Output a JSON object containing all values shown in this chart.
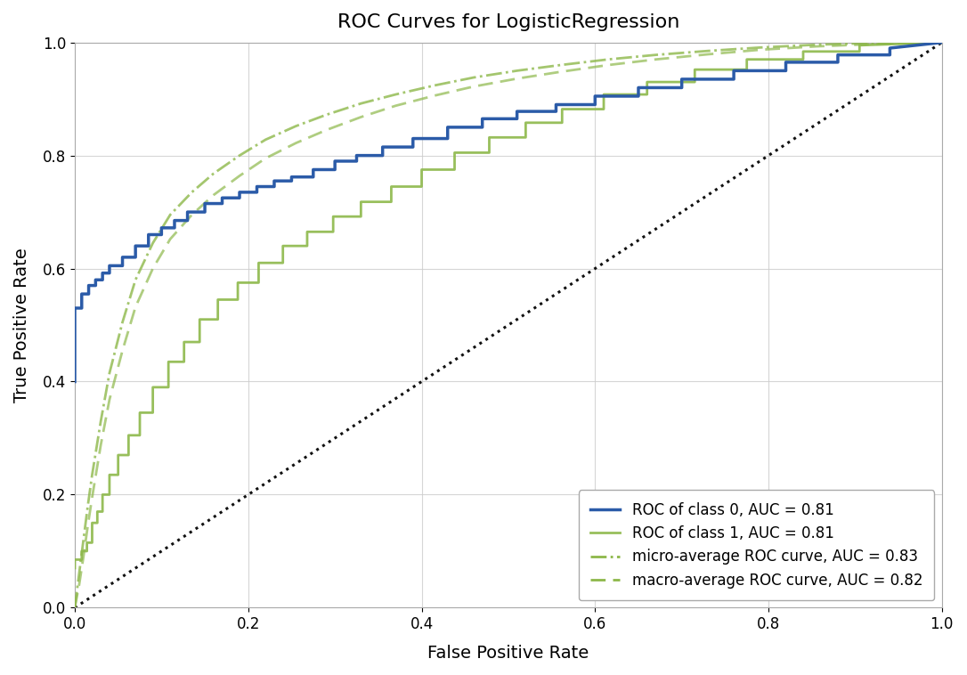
{
  "title": "ROC Curves for LogisticRegression",
  "xlabel": "False Positive Rate",
  "ylabel": "True Positive Rate",
  "xlim": [
    0.0,
    1.0
  ],
  "ylim": [
    0.0,
    1.0
  ],
  "background_color": "#ffffff",
  "grid_color": "#cccccc",
  "title_fontsize": 16,
  "label_fontsize": 14,
  "tick_fontsize": 12,
  "legend_fontsize": 12,
  "color_class0": "#2b5ba8",
  "color_class1": "#8db84a",
  "color_micro": "#8db84a",
  "color_macro": "#8db84a",
  "color_diagonal": "#111111",
  "legend_labels": [
    "ROC of class 0, AUC = 0.81",
    "ROC of class 1, AUC = 0.81",
    "micro-average ROC curve, AUC = 0.83",
    "macro-average ROC curve, AUC = 0.82"
  ],
  "fpr_c0": [
    0.0,
    0.0,
    0.008,
    0.008,
    0.016,
    0.016,
    0.024,
    0.024,
    0.032,
    0.032,
    0.04,
    0.04,
    0.055,
    0.055,
    0.07,
    0.07,
    0.085,
    0.085,
    0.1,
    0.1,
    0.115,
    0.115,
    0.13,
    0.13,
    0.15,
    0.15,
    0.17,
    0.17,
    0.19,
    0.19,
    0.21,
    0.21,
    0.23,
    0.23,
    0.25,
    0.25,
    0.275,
    0.275,
    0.3,
    0.3,
    0.325,
    0.325,
    0.355,
    0.355,
    0.39,
    0.39,
    0.43,
    0.43,
    0.47,
    0.47,
    0.51,
    0.51,
    0.555,
    0.555,
    0.6,
    0.6,
    0.65,
    0.65,
    0.7,
    0.7,
    0.76,
    0.76,
    0.82,
    0.82,
    0.88,
    0.88,
    0.94,
    0.94,
    1.0
  ],
  "tpr_c0": [
    0.4,
    0.53,
    0.53,
    0.555,
    0.555,
    0.57,
    0.57,
    0.58,
    0.58,
    0.592,
    0.592,
    0.605,
    0.605,
    0.62,
    0.62,
    0.64,
    0.64,
    0.66,
    0.66,
    0.672,
    0.672,
    0.685,
    0.685,
    0.7,
    0.7,
    0.715,
    0.715,
    0.725,
    0.725,
    0.735,
    0.735,
    0.745,
    0.745,
    0.755,
    0.755,
    0.762,
    0.762,
    0.775,
    0.775,
    0.79,
    0.79,
    0.8,
    0.8,
    0.815,
    0.815,
    0.83,
    0.83,
    0.85,
    0.85,
    0.865,
    0.865,
    0.878,
    0.878,
    0.89,
    0.89,
    0.905,
    0.905,
    0.92,
    0.92,
    0.935,
    0.935,
    0.95,
    0.95,
    0.965,
    0.965,
    0.978,
    0.978,
    0.99,
    1.0
  ],
  "fpr_c1": [
    0.0,
    0.0,
    0.008,
    0.008,
    0.014,
    0.014,
    0.02,
    0.02,
    0.026,
    0.026,
    0.032,
    0.032,
    0.04,
    0.04,
    0.05,
    0.05,
    0.062,
    0.062,
    0.075,
    0.075,
    0.09,
    0.09,
    0.108,
    0.108,
    0.126,
    0.126,
    0.144,
    0.144,
    0.165,
    0.165,
    0.188,
    0.188,
    0.212,
    0.212,
    0.24,
    0.24,
    0.268,
    0.268,
    0.298,
    0.298,
    0.33,
    0.33,
    0.365,
    0.365,
    0.4,
    0.4,
    0.438,
    0.438,
    0.478,
    0.478,
    0.52,
    0.52,
    0.562,
    0.562,
    0.61,
    0.61,
    0.66,
    0.66,
    0.715,
    0.715,
    0.775,
    0.775,
    0.84,
    0.84,
    0.905,
    0.905,
    1.0
  ],
  "tpr_c1": [
    0.07,
    0.085,
    0.085,
    0.1,
    0.1,
    0.115,
    0.115,
    0.15,
    0.15,
    0.17,
    0.17,
    0.2,
    0.2,
    0.235,
    0.235,
    0.27,
    0.27,
    0.305,
    0.305,
    0.345,
    0.345,
    0.39,
    0.39,
    0.435,
    0.435,
    0.47,
    0.47,
    0.51,
    0.51,
    0.545,
    0.545,
    0.575,
    0.575,
    0.61,
    0.61,
    0.64,
    0.64,
    0.665,
    0.665,
    0.692,
    0.692,
    0.718,
    0.718,
    0.745,
    0.745,
    0.775,
    0.775,
    0.805,
    0.805,
    0.832,
    0.832,
    0.858,
    0.858,
    0.882,
    0.882,
    0.908,
    0.908,
    0.93,
    0.93,
    0.952,
    0.952,
    0.97,
    0.97,
    0.984,
    0.984,
    0.995,
    1.0
  ],
  "fpr_micro": [
    0.0,
    0.005,
    0.01,
    0.015,
    0.02,
    0.03,
    0.04,
    0.055,
    0.07,
    0.09,
    0.11,
    0.135,
    0.16,
    0.19,
    0.22,
    0.255,
    0.29,
    0.33,
    0.37,
    0.415,
    0.46,
    0.51,
    0.56,
    0.615,
    0.67,
    0.73,
    0.79,
    0.855,
    0.92,
    1.0
  ],
  "tpr_micro": [
    0.0,
    0.06,
    0.12,
    0.18,
    0.235,
    0.33,
    0.415,
    0.505,
    0.58,
    0.645,
    0.695,
    0.735,
    0.768,
    0.8,
    0.828,
    0.852,
    0.872,
    0.892,
    0.908,
    0.924,
    0.938,
    0.95,
    0.96,
    0.97,
    0.978,
    0.985,
    0.991,
    0.996,
    0.999,
    1.0
  ],
  "fpr_macro": [
    0.0,
    0.005,
    0.01,
    0.015,
    0.02,
    0.03,
    0.04,
    0.055,
    0.07,
    0.09,
    0.11,
    0.135,
    0.16,
    0.19,
    0.22,
    0.255,
    0.29,
    0.33,
    0.37,
    0.415,
    0.46,
    0.51,
    0.56,
    0.615,
    0.67,
    0.73,
    0.79,
    0.855,
    0.92,
    1.0
  ],
  "tpr_macro": [
    0.0,
    0.04,
    0.09,
    0.145,
    0.195,
    0.288,
    0.368,
    0.455,
    0.532,
    0.6,
    0.652,
    0.695,
    0.73,
    0.764,
    0.795,
    0.822,
    0.845,
    0.868,
    0.888,
    0.906,
    0.922,
    0.936,
    0.948,
    0.96,
    0.97,
    0.979,
    0.987,
    0.993,
    0.997,
    1.0
  ]
}
